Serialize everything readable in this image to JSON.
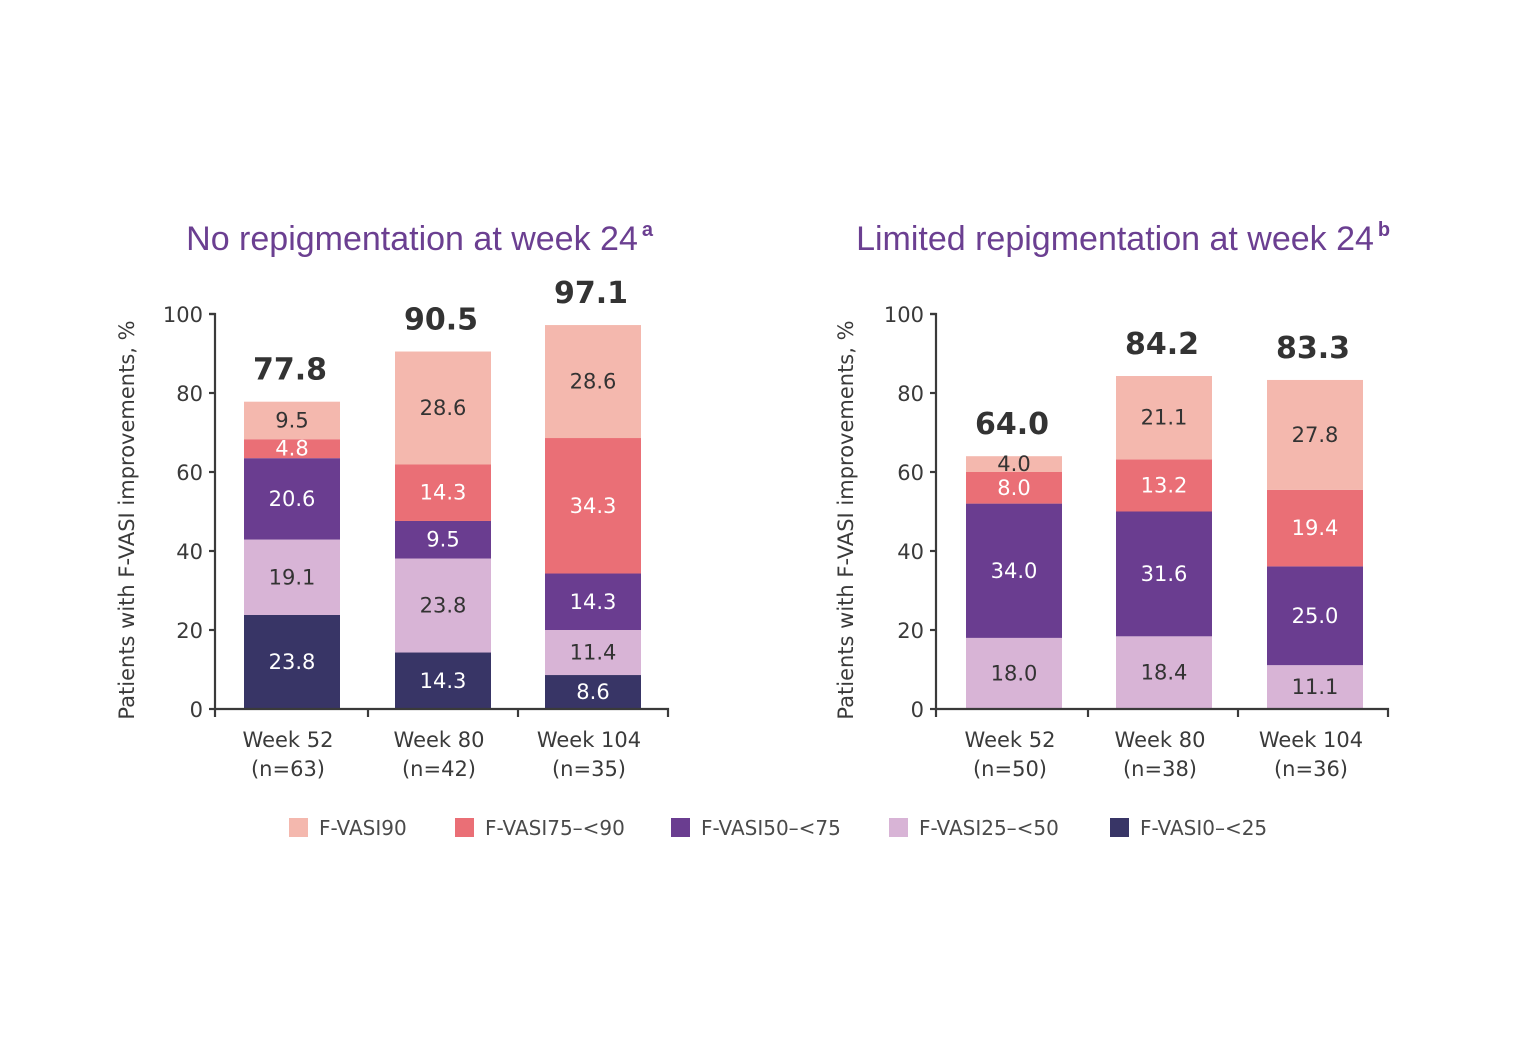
{
  "chart_data": {
    "type": "bar",
    "stacked": true,
    "legend": {
      "placement": "bottom-center",
      "entries": [
        {
          "key": "fvasi90",
          "label": "F-VASI90",
          "color": "#f4b8ae",
          "text_color": "#333333"
        },
        {
          "key": "fvasi75",
          "label": "F-VASI75–<90",
          "color": "#ea6f76",
          "text_color": "#ffffff"
        },
        {
          "key": "fvasi50",
          "label": "F-VASI50–<75",
          "color": "#6a3d90",
          "text_color": "#ffffff"
        },
        {
          "key": "fvasi25",
          "label": "F-VASI25–<50",
          "color": "#d8b4d6",
          "text_color": "#333333"
        },
        {
          "key": "fvasi0",
          "label": "F-VASI0–<25",
          "color": "#383566",
          "text_color": "#ffffff"
        }
      ]
    },
    "panels": [
      {
        "title": "No repigmentation at week 24",
        "title_superscript": "a",
        "ylabel": "Patients with F-VASI improvements, %",
        "ylim": [
          0,
          100
        ],
        "yticks": [
          0,
          20,
          40,
          60,
          80,
          100
        ],
        "categories": [
          "Week 52",
          "Week 80",
          "Week 104"
        ],
        "category_n": [
          "(n=63)",
          "(n=42)",
          "(n=35)"
        ],
        "totals": [
          "77.8",
          "90.5",
          "97.1"
        ],
        "series": [
          {
            "name": "F-VASI0–<25",
            "key": "fvasi0",
            "values": [
              23.8,
              14.3,
              8.6
            ]
          },
          {
            "name": "F-VASI25–<50",
            "key": "fvasi25",
            "values": [
              19.1,
              23.8,
              11.4
            ]
          },
          {
            "name": "F-VASI50–<75",
            "key": "fvasi50",
            "values": [
              20.6,
              9.5,
              14.3
            ]
          },
          {
            "name": "F-VASI75–<90",
            "key": "fvasi75",
            "values": [
              4.8,
              14.3,
              34.3
            ]
          },
          {
            "name": "F-VASI90",
            "key": "fvasi90",
            "values": [
              9.5,
              28.6,
              28.6
            ]
          }
        ]
      },
      {
        "title": "Limited repigmentation at week 24",
        "title_superscript": "b",
        "ylabel": "Patients with F-VASI improvements, %",
        "ylim": [
          0,
          100
        ],
        "yticks": [
          0,
          20,
          40,
          60,
          80,
          100
        ],
        "categories": [
          "Week 52",
          "Week 80",
          "Week 104"
        ],
        "category_n": [
          "(n=50)",
          "(n=38)",
          "(n=36)"
        ],
        "totals": [
          "64.0",
          "84.2",
          "83.3"
        ],
        "series": [
          {
            "name": "F-VASI0–<25",
            "key": "fvasi0",
            "values": [
              0,
              0,
              0
            ]
          },
          {
            "name": "F-VASI25–<50",
            "key": "fvasi25",
            "values": [
              18.0,
              18.4,
              11.1
            ]
          },
          {
            "name": "F-VASI50–<75",
            "key": "fvasi50",
            "values": [
              34.0,
              31.6,
              25.0
            ]
          },
          {
            "name": "F-VASI75–<90",
            "key": "fvasi75",
            "values": [
              8.0,
              13.2,
              19.4
            ]
          },
          {
            "name": "F-VASI90",
            "key": "fvasi90",
            "values": [
              4.0,
              21.1,
              27.8
            ]
          }
        ]
      }
    ]
  }
}
